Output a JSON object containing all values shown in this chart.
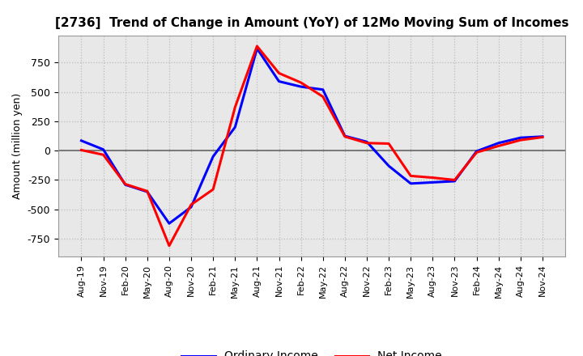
{
  "title": "[2736]  Trend of Change in Amount (YoY) of 12Mo Moving Sum of Incomes",
  "ylabel": "Amount (million yen)",
  "x_labels": [
    "Aug-19",
    "Nov-19",
    "Feb-20",
    "May-20",
    "Aug-20",
    "Nov-20",
    "Feb-21",
    "May-21",
    "Aug-21",
    "Nov-21",
    "Feb-22",
    "May-22",
    "Aug-22",
    "Nov-22",
    "Feb-23",
    "May-23",
    "Aug-23",
    "Nov-23",
    "Feb-24",
    "May-24",
    "Aug-24",
    "Nov-24"
  ],
  "ordinary_income": [
    85,
    10,
    -290,
    -350,
    -620,
    -480,
    -50,
    200,
    870,
    590,
    545,
    520,
    125,
    75,
    -130,
    -280,
    -270,
    -260,
    -5,
    65,
    110,
    120
  ],
  "net_income": [
    5,
    -35,
    -285,
    -345,
    -810,
    -460,
    -330,
    370,
    890,
    660,
    580,
    460,
    120,
    65,
    60,
    -215,
    -230,
    -250,
    -15,
    40,
    90,
    115
  ],
  "ordinary_color": "#0000FF",
  "net_color": "#FF0000",
  "ylim": [
    -900,
    980
  ],
  "yticks": [
    -750,
    -500,
    -250,
    0,
    250,
    500,
    750
  ],
  "plot_bg_color": "#E8E8E8",
  "fig_bg_color": "#FFFFFF",
  "grid_color": "#BBBBBB",
  "zero_line_color": "#666666",
  "legend_labels": [
    "Ordinary Income",
    "Net Income"
  ]
}
